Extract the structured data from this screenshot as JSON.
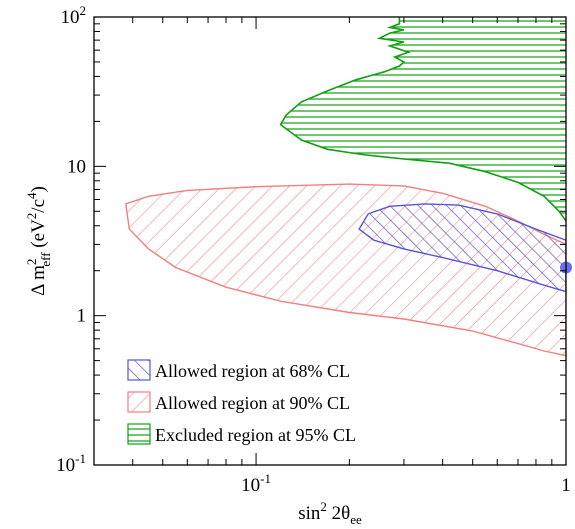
{
  "chart_data": {
    "type": "contour",
    "title": "",
    "xlabel": {
      "base": "sin",
      "sup": "2",
      "mid": " 2θ",
      "sub": "ee"
    },
    "ylabel": {
      "base": "Δ m",
      "sup": "2",
      "sub": "eff",
      "rest1": " (eV",
      "sup2": "2",
      "rest2": "/c",
      "sup3": "4",
      "rest3": ")"
    },
    "x_scale": "log",
    "y_scale": "log",
    "xlim": [
      0.03,
      1
    ],
    "ylim": [
      0.1,
      100
    ],
    "x_ticks": [
      {
        "value": 0.1,
        "base": "10",
        "exp": "-1"
      },
      {
        "value": 1,
        "base": "1",
        "exp": ""
      }
    ],
    "y_ticks": [
      {
        "value": 0.1,
        "base": "10",
        "exp": "-1"
      },
      {
        "value": 1,
        "base": "1",
        "exp": ""
      },
      {
        "value": 10,
        "base": "10",
        "exp": ""
      },
      {
        "value": 100,
        "base": "10",
        "exp": "2"
      }
    ],
    "colors": {
      "allowed68": "#5555dd",
      "allowed90": "#f08080",
      "excluded95": "#10a010",
      "bestfit": "#6b6bf0"
    },
    "legend": {
      "placement": "bottom-left",
      "entries": [
        {
          "key": "allowed68",
          "label": "Allowed region at 68% CL"
        },
        {
          "key": "allowed90",
          "label": "Allowed region at 90% CL"
        },
        {
          "key": "excluded95",
          "label": "Excluded region at 95% CL"
        }
      ]
    },
    "best_fit": {
      "x": 1.0,
      "y": 2.1
    },
    "regions": {
      "allowed90": [
        [
          0.038,
          5.6
        ],
        [
          0.045,
          6.3
        ],
        [
          0.06,
          6.9
        ],
        [
          0.1,
          7.3
        ],
        [
          0.2,
          7.6
        ],
        [
          0.3,
          7.4
        ],
        [
          0.4,
          6.6
        ],
        [
          0.55,
          5.4
        ],
        [
          0.7,
          4.3
        ],
        [
          0.85,
          3.5
        ],
        [
          1.0,
          3.0
        ],
        [
          1.0,
          0.54
        ],
        [
          0.85,
          0.58
        ],
        [
          0.7,
          0.65
        ],
        [
          0.5,
          0.79
        ],
        [
          0.3,
          0.95
        ],
        [
          0.2,
          1.05
        ],
        [
          0.12,
          1.25
        ],
        [
          0.08,
          1.55
        ],
        [
          0.055,
          2.1
        ],
        [
          0.045,
          2.8
        ],
        [
          0.039,
          3.8
        ]
      ],
      "allowed68": [
        [
          0.215,
          3.8
        ],
        [
          0.23,
          4.8
        ],
        [
          0.27,
          5.4
        ],
        [
          0.35,
          5.6
        ],
        [
          0.45,
          5.5
        ],
        [
          0.6,
          4.8
        ],
        [
          0.8,
          3.8
        ],
        [
          1.0,
          3.2
        ],
        [
          1.0,
          1.45
        ],
        [
          0.85,
          1.6
        ],
        [
          0.6,
          2.0
        ],
        [
          0.4,
          2.45
        ],
        [
          0.3,
          2.8
        ],
        [
          0.24,
          3.2
        ]
      ],
      "excluded95_boundary": [
        [
          0.29,
          100
        ],
        [
          0.29,
          90
        ],
        [
          0.27,
          85
        ],
        [
          0.3,
          82
        ],
        [
          0.27,
          78
        ],
        [
          0.25,
          72
        ],
        [
          0.3,
          68
        ],
        [
          0.27,
          64
        ],
        [
          0.31,
          58
        ],
        [
          0.28,
          54
        ],
        [
          0.3,
          50
        ],
        [
          0.29,
          47
        ],
        [
          0.26,
          43
        ],
        [
          0.21,
          38
        ],
        [
          0.17,
          32
        ],
        [
          0.14,
          27
        ],
        [
          0.125,
          22
        ],
        [
          0.12,
          19
        ],
        [
          0.14,
          15
        ],
        [
          0.17,
          13
        ],
        [
          0.22,
          12
        ],
        [
          0.3,
          11.2
        ],
        [
          0.42,
          10.5
        ],
        [
          0.55,
          9.2
        ],
        [
          0.7,
          7.8
        ],
        [
          0.85,
          6.3
        ],
        [
          0.95,
          5.0
        ],
        [
          1.0,
          4.3
        ]
      ]
    }
  }
}
